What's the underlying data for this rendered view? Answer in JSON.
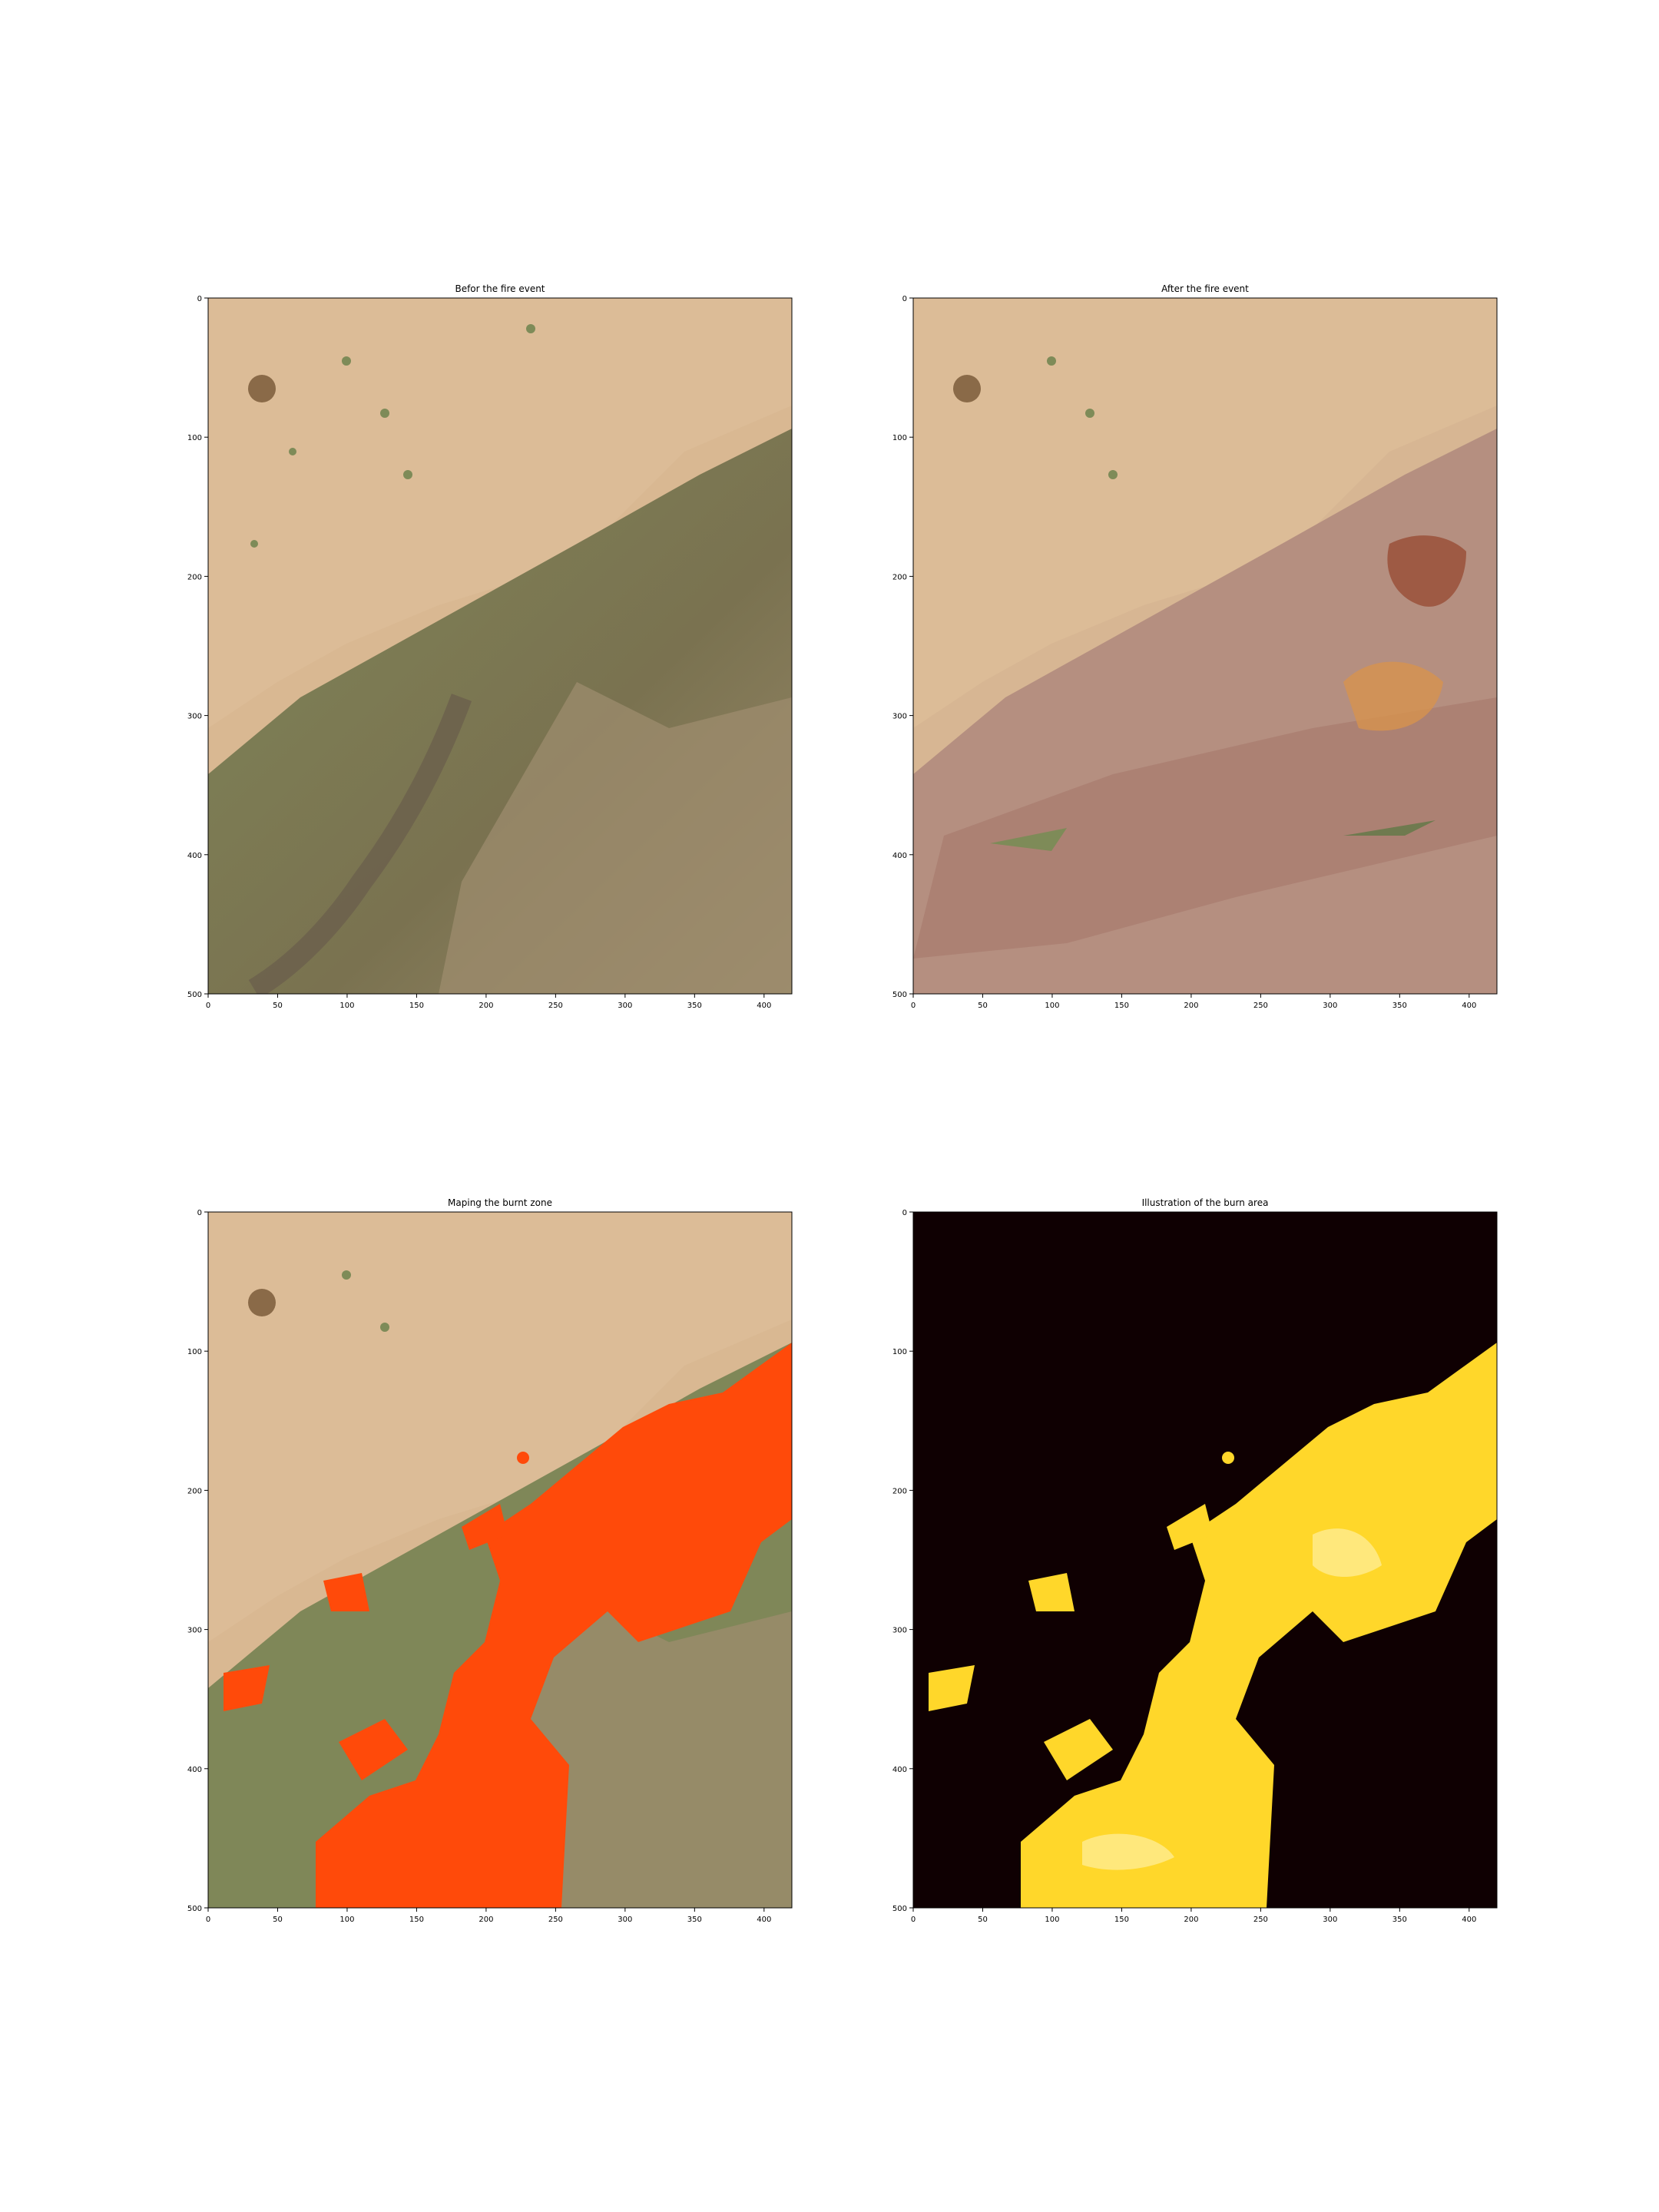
{
  "panels": [
    {
      "title": "Befor the fire event"
    },
    {
      "title": "After the fire event"
    },
    {
      "title": "Maping the burnt zone"
    },
    {
      "title": "Illustration of the burn area"
    }
  ],
  "axes": {
    "x_ticks": [
      0,
      50,
      100,
      150,
      200,
      250,
      300,
      350,
      400
    ],
    "y_ticks": [
      0,
      100,
      200,
      300,
      400,
      500
    ],
    "x_range": [
      0,
      420
    ],
    "y_range": [
      0,
      500
    ]
  },
  "colors": {
    "sand": "#d8b690",
    "vegetation": "#6f7a4f",
    "burnt": "#9a7066",
    "overlay": "#ff4a0a",
    "mask_bg": "#0f0002",
    "mask_fg": "#ffd72a"
  }
}
